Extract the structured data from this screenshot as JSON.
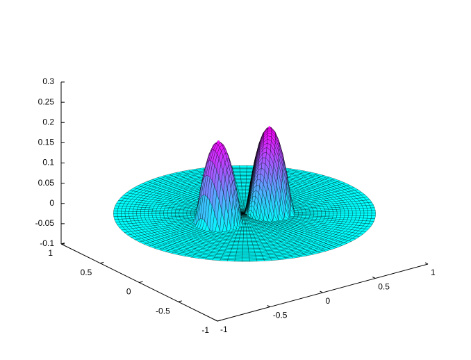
{
  "chart_data": {
    "type": "surface3d",
    "xlim": [
      -1,
      1
    ],
    "xticks": [
      -1,
      -0.5,
      0,
      0.5,
      1
    ],
    "ylim": [
      -1,
      1
    ],
    "yticks": [
      -1,
      -0.5,
      0,
      0.5,
      1
    ],
    "zlim": [
      -0.1,
      0.3
    ],
    "zticks": [
      -0.1,
      -0.05,
      0,
      0.05,
      0.1,
      0.15,
      0.2,
      0.25,
      0.3
    ],
    "colormap": "cool",
    "edge_color": "#000000",
    "peaks": [
      {
        "x": -0.27,
        "y": -0.03,
        "z": 0.2
      },
      {
        "x": 0.17,
        "y": -0.09,
        "z": 0.21
      }
    ]
  }
}
